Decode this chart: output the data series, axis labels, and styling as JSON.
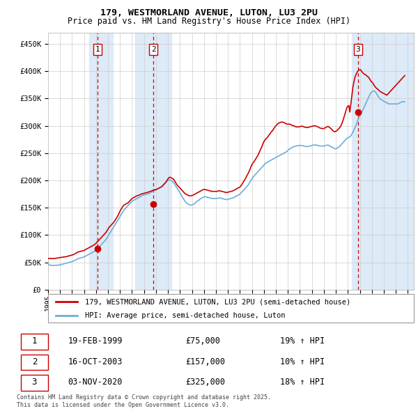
{
  "title": "179, WESTMORLAND AVENUE, LUTON, LU3 2PU",
  "subtitle": "Price paid vs. HM Land Registry's House Price Index (HPI)",
  "legend_line1": "179, WESTMORLAND AVENUE, LUTON, LU3 2PU (semi-detached house)",
  "legend_line2": "HPI: Average price, semi-detached house, Luton",
  "transactions": [
    {
      "id": 1,
      "date": "19-FEB-1999",
      "price": 75000,
      "pct": "19% ↑ HPI",
      "year": 1999.12
    },
    {
      "id": 2,
      "date": "16-OCT-2003",
      "price": 157000,
      "pct": "10% ↑ HPI",
      "year": 2003.79
    },
    {
      "id": 3,
      "date": "03-NOV-2020",
      "price": 325000,
      "pct": "18% ↑ HPI",
      "year": 2020.84
    }
  ],
  "footer1": "Contains HM Land Registry data © Crown copyright and database right 2025.",
  "footer2": "This data is licensed under the Open Government Licence v3.0.",
  "hpi_color": "#6baed6",
  "price_color": "#cc0000",
  "transaction_color": "#cc0000",
  "background_color": "#ffffff",
  "grid_color": "#cccccc",
  "vband_color": "#ddeaf7",
  "ylim": [
    0,
    470000
  ],
  "xlim_start": 1995.0,
  "xlim_end": 2025.5,
  "yticks": [
    0,
    50000,
    100000,
    150000,
    200000,
    250000,
    300000,
    350000,
    400000,
    450000
  ],
  "hpi_data_monthly": {
    "start_year": 1995,
    "start_month": 1,
    "values": [
      46000,
      45500,
      45000,
      44800,
      44600,
      44400,
      44500,
      44700,
      44800,
      44900,
      45000,
      45200,
      45500,
      46000,
      46500,
      47000,
      47500,
      48000,
      48500,
      49000,
      49500,
      50000,
      50500,
      51000,
      51500,
      52000,
      53000,
      54000,
      55000,
      56000,
      57000,
      57500,
      58000,
      58500,
      59000,
      59500,
      60000,
      61000,
      62000,
      63000,
      64000,
      65000,
      66000,
      67000,
      68000,
      69000,
      70000,
      71000,
      72000,
      74000,
      76000,
      78000,
      80000,
      82000,
      84000,
      86000,
      88000,
      90000,
      92000,
      95000,
      98000,
      101000,
      104000,
      107000,
      110000,
      113000,
      116000,
      119000,
      122000,
      125000,
      128000,
      131000,
      134000,
      137000,
      140000,
      143000,
      146000,
      148000,
      150000,
      152000,
      154000,
      156000,
      158000,
      160000,
      162000,
      163000,
      164000,
      165000,
      166000,
      167000,
      168000,
      169000,
      170000,
      171000,
      172000,
      173000,
      173500,
      174000,
      174500,
      175000,
      175500,
      176000,
      177000,
      178000,
      179000,
      180000,
      181000,
      182000,
      183000,
      184000,
      185000,
      186000,
      187000,
      188000,
      189000,
      191000,
      193000,
      195000,
      197000,
      199000,
      200000,
      201000,
      201000,
      200000,
      199000,
      197000,
      195000,
      192000,
      189000,
      186000,
      183000,
      180000,
      177000,
      174000,
      171000,
      168000,
      165000,
      162000,
      160000,
      158000,
      157000,
      156000,
      155000,
      155000,
      155000,
      156000,
      157000,
      158000,
      160000,
      162000,
      163000,
      164000,
      166000,
      167000,
      168000,
      169000,
      170000,
      170500,
      170000,
      169500,
      169000,
      168500,
      168000,
      167500,
      167000,
      167000,
      167000,
      167000,
      167000,
      167000,
      167500,
      168000,
      168000,
      167500,
      167000,
      166500,
      166000,
      165500,
      165000,
      165000,
      165500,
      166000,
      166500,
      167000,
      167500,
      168000,
      169000,
      170000,
      171000,
      172000,
      173000,
      174000,
      175000,
      177000,
      179000,
      181000,
      183000,
      185000,
      187000,
      189000,
      191000,
      194000,
      197000,
      200000,
      203000,
      206000,
      208000,
      210000,
      212000,
      214000,
      216000,
      218000,
      220000,
      222000,
      224000,
      226000,
      228000,
      230000,
      232000,
      233000,
      234000,
      235000,
      236000,
      237000,
      238000,
      239000,
      240000,
      241000,
      242000,
      243000,
      244000,
      245000,
      246000,
      247000,
      248000,
      249000,
      250000,
      251000,
      252000,
      253000,
      255000,
      257000,
      258000,
      259000,
      260000,
      261000,
      262000,
      262500,
      263000,
      263200,
      263500,
      264000,
      264000,
      264000,
      264000,
      263500,
      263000,
      262500,
      262000,
      262000,
      262000,
      262500,
      263000,
      263500,
      264000,
      264500,
      265000,
      265000,
      265000,
      264500,
      264000,
      263500,
      263000,
      263000,
      263000,
      263000,
      263000,
      263500,
      264000,
      264500,
      265000,
      264000,
      263000,
      262000,
      261000,
      260000,
      259000,
      258000,
      258000,
      259000,
      260000,
      261000,
      263000,
      265000,
      267000,
      269000,
      271000,
      273000,
      275000,
      277000,
      278000,
      279000,
      280000,
      282000,
      285000,
      288000,
      292000,
      296000,
      300000,
      305000,
      310000,
      315000,
      318000,
      321000,
      325000,
      329000,
      333000,
      337000,
      341000,
      345000,
      349000,
      353000,
      357000,
      360000,
      362000,
      363000,
      364000,
      363000,
      361000,
      358000,
      355000,
      352000,
      350000,
      348000,
      347000,
      346000,
      345000,
      344000,
      343000,
      342000,
      341000,
      340000,
      340000,
      340000,
      340000,
      340000,
      340000,
      340000,
      340000,
      340000,
      340000,
      341000,
      342000,
      343000,
      344000,
      344000,
      344000,
      344000
    ]
  },
  "price_data_monthly": {
    "start_year": 1995,
    "start_month": 1,
    "values": [
      57000,
      57200,
      57400,
      57200,
      57000,
      57100,
      57200,
      57500,
      57800,
      58000,
      58200,
      58500,
      59000,
      59200,
      59500,
      59800,
      60000,
      60200,
      60500,
      61000,
      61500,
      62000,
      62500,
      63000,
      63500,
      64000,
      65000,
      66000,
      67000,
      68000,
      69000,
      69500,
      70000,
      70500,
      71000,
      71500,
      72000,
      73000,
      74000,
      75000,
      76000,
      77000,
      78000,
      79000,
      80000,
      81000,
      82000,
      83500,
      85000,
      87000,
      89000,
      91000,
      93000,
      95000,
      97000,
      99000,
      101000,
      103000,
      105000,
      108000,
      111000,
      114000,
      116000,
      118000,
      120000,
      122000,
      124000,
      127000,
      130000,
      133000,
      136000,
      140000,
      144000,
      147000,
      150000,
      153000,
      155000,
      156000,
      157000,
      158000,
      159000,
      161000,
      163000,
      165000,
      167000,
      168000,
      169000,
      170000,
      171000,
      172000,
      172500,
      173000,
      174000,
      175000,
      175500,
      176000,
      176500,
      177000,
      177500,
      178000,
      178500,
      179000,
      180000,
      180500,
      181000,
      182000,
      182500,
      183000,
      183500,
      184000,
      185000,
      186000,
      187000,
      188000,
      189000,
      191000,
      193000,
      195000,
      197000,
      200000,
      203000,
      205000,
      206000,
      205000,
      204000,
      203000,
      201000,
      198000,
      195000,
      192000,
      190000,
      188000,
      186000,
      184000,
      182000,
      180000,
      178000,
      176000,
      175000,
      174000,
      173000,
      172000,
      172000,
      172000,
      172500,
      173000,
      174000,
      175000,
      176000,
      177000,
      178000,
      179000,
      180000,
      181000,
      182000,
      183000,
      183500,
      183500,
      183000,
      182500,
      182000,
      181500,
      181000,
      180500,
      180000,
      180000,
      180000,
      180000,
      180000,
      180000,
      180500,
      181000,
      181000,
      180500,
      180000,
      179500,
      179000,
      178500,
      178000,
      178000,
      178500,
      179000,
      179500,
      180000,
      180500,
      181000,
      182000,
      183000,
      184000,
      185000,
      186000,
      187000,
      188000,
      190000,
      193000,
      196000,
      199000,
      202000,
      205000,
      209000,
      212000,
      216000,
      220000,
      225000,
      229000,
      232000,
      234000,
      237000,
      240000,
      243000,
      246000,
      250000,
      254000,
      258000,
      262000,
      267000,
      271000,
      274000,
      276000,
      278000,
      280000,
      283000,
      285000,
      288000,
      290000,
      292000,
      295000,
      298000,
      300000,
      302000,
      304000,
      305000,
      306000,
      306500,
      307000,
      306500,
      306000,
      305000,
      304000,
      303000,
      303000,
      303000,
      303000,
      302000,
      301000,
      300000,
      300000,
      299000,
      298000,
      298000,
      298000,
      298000,
      298500,
      299000,
      299500,
      299000,
      298000,
      297500,
      297000,
      297000,
      297000,
      297500,
      298000,
      298500,
      299000,
      299500,
      300000,
      300000,
      299500,
      299000,
      298000,
      297000,
      296000,
      295500,
      295000,
      295000,
      295000,
      296000,
      297000,
      298000,
      299000,
      298000,
      296500,
      295000,
      293000,
      291000,
      290000,
      289000,
      290000,
      291000,
      293000,
      295000,
      297000,
      300000,
      304000,
      309000,
      315000,
      321000,
      327000,
      333000,
      336000,
      337000,
      325000,
      340000,
      355000,
      370000,
      380000,
      388000,
      393000,
      397000,
      400000,
      402000,
      403000,
      402000,
      399000,
      397000,
      395000,
      394000,
      393000,
      391000,
      390000,
      388000,
      385000,
      382000,
      380000,
      378000,
      375000,
      372000,
      370000,
      368000,
      367000,
      365000,
      363000,
      362000,
      361000,
      360000,
      359000,
      358000,
      357000,
      356000,
      358000,
      360000,
      362000,
      364000,
      366000,
      368000,
      370000,
      372000,
      374000,
      376000,
      378000,
      380000,
      382000,
      384000,
      386000,
      388000,
      390000,
      392000
    ]
  }
}
